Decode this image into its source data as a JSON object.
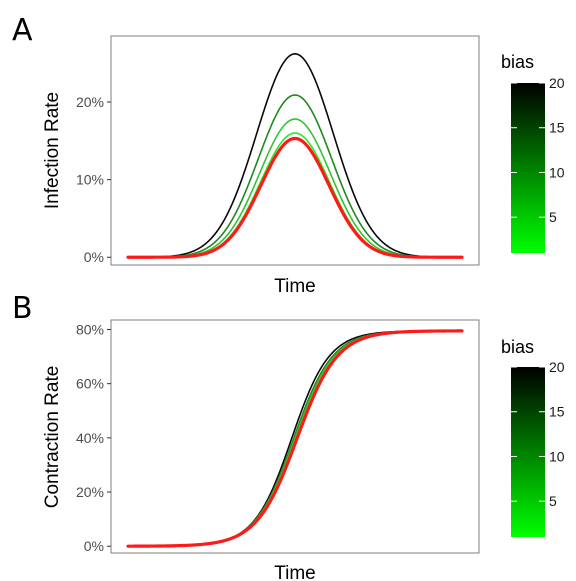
{
  "chart_data": [
    {
      "type": "line",
      "panel_label": "A",
      "xlabel": "Time",
      "ylabel": "Infection Rate",
      "ylim": [
        -0.01,
        0.285
      ],
      "yticks": [
        0,
        0.1,
        0.2
      ],
      "ytick_labels": [
        "0%",
        "10%",
        "20%"
      ],
      "x_ticks_shown": false,
      "grid": false,
      "curve_shape": "bell",
      "x_range": [
        0,
        100
      ],
      "peak_x": 50,
      "series": [
        {
          "bias": 20,
          "color": "#0a0a0a",
          "stroke_width": 1.6,
          "peak": 0.262,
          "width": 11.5
        },
        {
          "bias": 15,
          "color": "#1f8a1f",
          "stroke_width": 1.6,
          "peak": 0.209,
          "width": 11.0
        },
        {
          "bias": 10,
          "color": "#34c234",
          "stroke_width": 1.6,
          "peak": 0.178,
          "width": 10.6
        },
        {
          "bias": 5,
          "color": "#22ee22",
          "stroke_width": 1.6,
          "peak": 0.16,
          "width": 10.3
        },
        {
          "bias": 1,
          "color": "#ff1a1a",
          "stroke_width": 3.2,
          "peak": 0.153,
          "width": 10.2
        }
      ],
      "legend": {
        "title": "bias",
        "position": "right",
        "ticks": [
          "5",
          "10",
          "15",
          "20"
        ],
        "tick_values": [
          5,
          10,
          15,
          20
        ],
        "range": [
          1,
          20
        ],
        "low_color": "#00ff00",
        "high_color": "#000000"
      }
    },
    {
      "type": "line",
      "panel_label": "B",
      "xlabel": "Time",
      "ylabel": "Contraction Rate",
      "ylim": [
        -0.025,
        0.835
      ],
      "yticks": [
        0,
        0.2,
        0.4,
        0.6,
        0.8
      ],
      "ytick_labels": [
        "0%",
        "20%",
        "40%",
        "60%",
        "80%"
      ],
      "x_ticks_shown": false,
      "grid": false,
      "curve_shape": "sigmoid",
      "x_range": [
        0,
        100
      ],
      "plateau": 0.795,
      "series": [
        {
          "bias": 20,
          "color": "#0a0a0a",
          "stroke_width": 1.6,
          "mid_x": 49.0,
          "scale": 5.6
        },
        {
          "bias": 15,
          "color": "#1f8a1f",
          "stroke_width": 1.6,
          "mid_x": 49.6,
          "scale": 5.8
        },
        {
          "bias": 10,
          "color": "#34c234",
          "stroke_width": 1.6,
          "mid_x": 50.0,
          "scale": 5.9
        },
        {
          "bias": 5,
          "color": "#22ee22",
          "stroke_width": 1.6,
          "mid_x": 50.3,
          "scale": 6.0
        },
        {
          "bias": 1,
          "color": "#ff1a1a",
          "stroke_width": 3.2,
          "mid_x": 50.6,
          "scale": 6.0
        }
      ],
      "legend": {
        "title": "bias",
        "position": "right",
        "ticks": [
          "5",
          "10",
          "15",
          "20"
        ],
        "tick_values": [
          5,
          10,
          15,
          20
        ],
        "range": [
          1,
          20
        ],
        "low_color": "#00ff00",
        "high_color": "#000000"
      }
    }
  ]
}
